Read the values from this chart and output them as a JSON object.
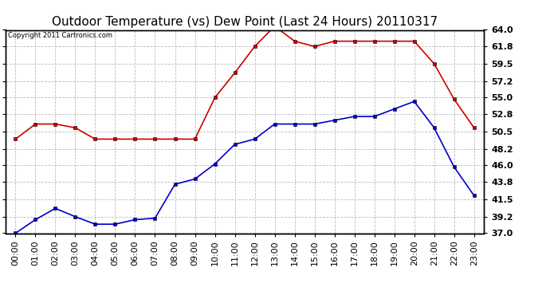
{
  "title": "Outdoor Temperature (vs) Dew Point (Last 24 Hours) 20110317",
  "copyright_text": "Copyright 2011 Cartronics.com",
  "hours": [
    "00:00",
    "01:00",
    "02:00",
    "03:00",
    "04:00",
    "05:00",
    "06:00",
    "07:00",
    "08:00",
    "09:00",
    "10:00",
    "11:00",
    "12:00",
    "13:00",
    "14:00",
    "15:00",
    "16:00",
    "17:00",
    "18:00",
    "19:00",
    "20:00",
    "21:00",
    "22:00",
    "23:00"
  ],
  "temp": [
    37.0,
    38.8,
    40.3,
    39.2,
    38.2,
    38.2,
    38.8,
    39.0,
    43.5,
    44.2,
    46.2,
    48.8,
    49.5,
    51.5,
    51.5,
    51.5,
    52.0,
    52.5,
    52.5,
    53.5,
    54.5,
    51.0,
    45.8,
    42.0
  ],
  "dew": [
    49.5,
    51.5,
    51.5,
    51.0,
    49.5,
    49.5,
    49.5,
    49.5,
    49.5,
    49.5,
    55.0,
    58.3,
    61.8,
    64.5,
    62.5,
    61.8,
    62.5,
    62.5,
    62.5,
    62.5,
    62.5,
    59.5,
    54.8,
    51.0
  ],
  "temp_color": "#0000cc",
  "dew_color": "#cc0000",
  "ylim": [
    37.0,
    64.0
  ],
  "yticks": [
    37.0,
    39.2,
    41.5,
    43.8,
    46.0,
    48.2,
    50.5,
    52.8,
    55.0,
    57.2,
    59.5,
    61.8,
    64.0
  ],
  "background_color": "#ffffff",
  "grid_color": "#bbbbbb",
  "title_fontsize": 11,
  "copyright_fontsize": 6,
  "tick_fontsize": 8,
  "marker": "s",
  "marker_size": 3,
  "line_width": 1.2
}
